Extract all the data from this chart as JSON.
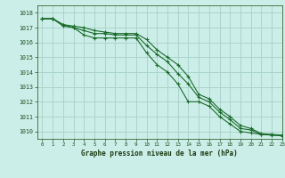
{
  "title": "Graphe pression niveau de la mer (hPa)",
  "bg_color": "#cceee8",
  "grid_color": "#aad4cc",
  "line_color": "#1a6b2a",
  "ylim": [
    1009.5,
    1018.5
  ],
  "xlim": [
    -0.5,
    23
  ],
  "yticks": [
    1010,
    1011,
    1012,
    1013,
    1014,
    1015,
    1016,
    1017,
    1018
  ],
  "xticks": [
    0,
    1,
    2,
    3,
    4,
    5,
    6,
    7,
    8,
    9,
    10,
    11,
    12,
    13,
    14,
    15,
    16,
    17,
    18,
    19,
    20,
    21,
    22,
    23
  ],
  "series1": [
    1017.6,
    1017.6,
    1017.2,
    1017.1,
    1017.0,
    1016.8,
    1016.7,
    1016.6,
    1016.6,
    1016.6,
    1016.2,
    1015.5,
    1015.0,
    1014.5,
    1013.7,
    1012.5,
    1012.2,
    1011.5,
    1011.0,
    1010.4,
    1010.2,
    1009.85,
    1009.8,
    1009.75
  ],
  "series2": [
    1017.6,
    1017.6,
    1017.2,
    1017.0,
    1016.5,
    1016.3,
    1016.3,
    1016.3,
    1016.3,
    1016.3,
    1015.3,
    1014.5,
    1014.0,
    1013.2,
    1012.0,
    1012.0,
    1011.7,
    1011.0,
    1010.5,
    1010.0,
    1009.9,
    1009.8,
    1009.75,
    1009.7
  ],
  "series3": [
    1017.6,
    1017.6,
    1017.1,
    1017.0,
    1016.8,
    1016.6,
    1016.6,
    1016.5,
    1016.5,
    1016.5,
    1015.8,
    1015.2,
    1014.7,
    1013.9,
    1013.2,
    1012.3,
    1012.0,
    1011.3,
    1010.8,
    1010.2,
    1010.1,
    1009.8,
    1009.78,
    1009.73
  ]
}
